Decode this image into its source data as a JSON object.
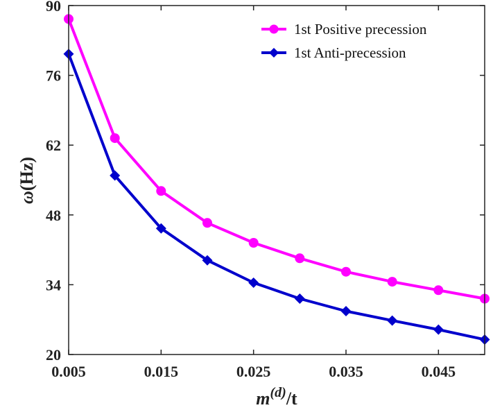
{
  "chart_data": {
    "type": "line",
    "xlabel": {
      "symbol": "m",
      "superscript": "(d)",
      "suffix": "/t"
    },
    "ylabel": {
      "symbol": "ω",
      "unit": "(Hz)"
    },
    "xlim": [
      0.005,
      0.05
    ],
    "ylim": [
      20,
      90
    ],
    "xticks": [
      0.005,
      0.015,
      0.025,
      0.035,
      0.045
    ],
    "xtick_labels": [
      "0.005",
      "0.015",
      "0.025",
      "0.035",
      "0.045"
    ],
    "yticks": [
      20,
      34,
      48,
      62,
      76,
      90
    ],
    "ytick_labels": [
      "20",
      "34",
      "48",
      "62",
      "76",
      "90"
    ],
    "grid": false,
    "legend_position": "top-right",
    "x": [
      0.005,
      0.01,
      0.015,
      0.02,
      0.025,
      0.03,
      0.035,
      0.04,
      0.045,
      0.05
    ],
    "series": [
      {
        "name": "1st Positive precession",
        "color": "#ff00ff",
        "marker": "circle",
        "values": [
          87.3,
          63.4,
          52.8,
          46.4,
          42.4,
          39.3,
          36.6,
          34.6,
          32.9,
          31.2
        ]
      },
      {
        "name": "1st Anti-precession",
        "color": "#0000cc",
        "marker": "diamond",
        "values": [
          80.3,
          55.9,
          45.3,
          38.9,
          34.4,
          31.2,
          28.7,
          26.8,
          25.0,
          23.0
        ]
      }
    ]
  }
}
